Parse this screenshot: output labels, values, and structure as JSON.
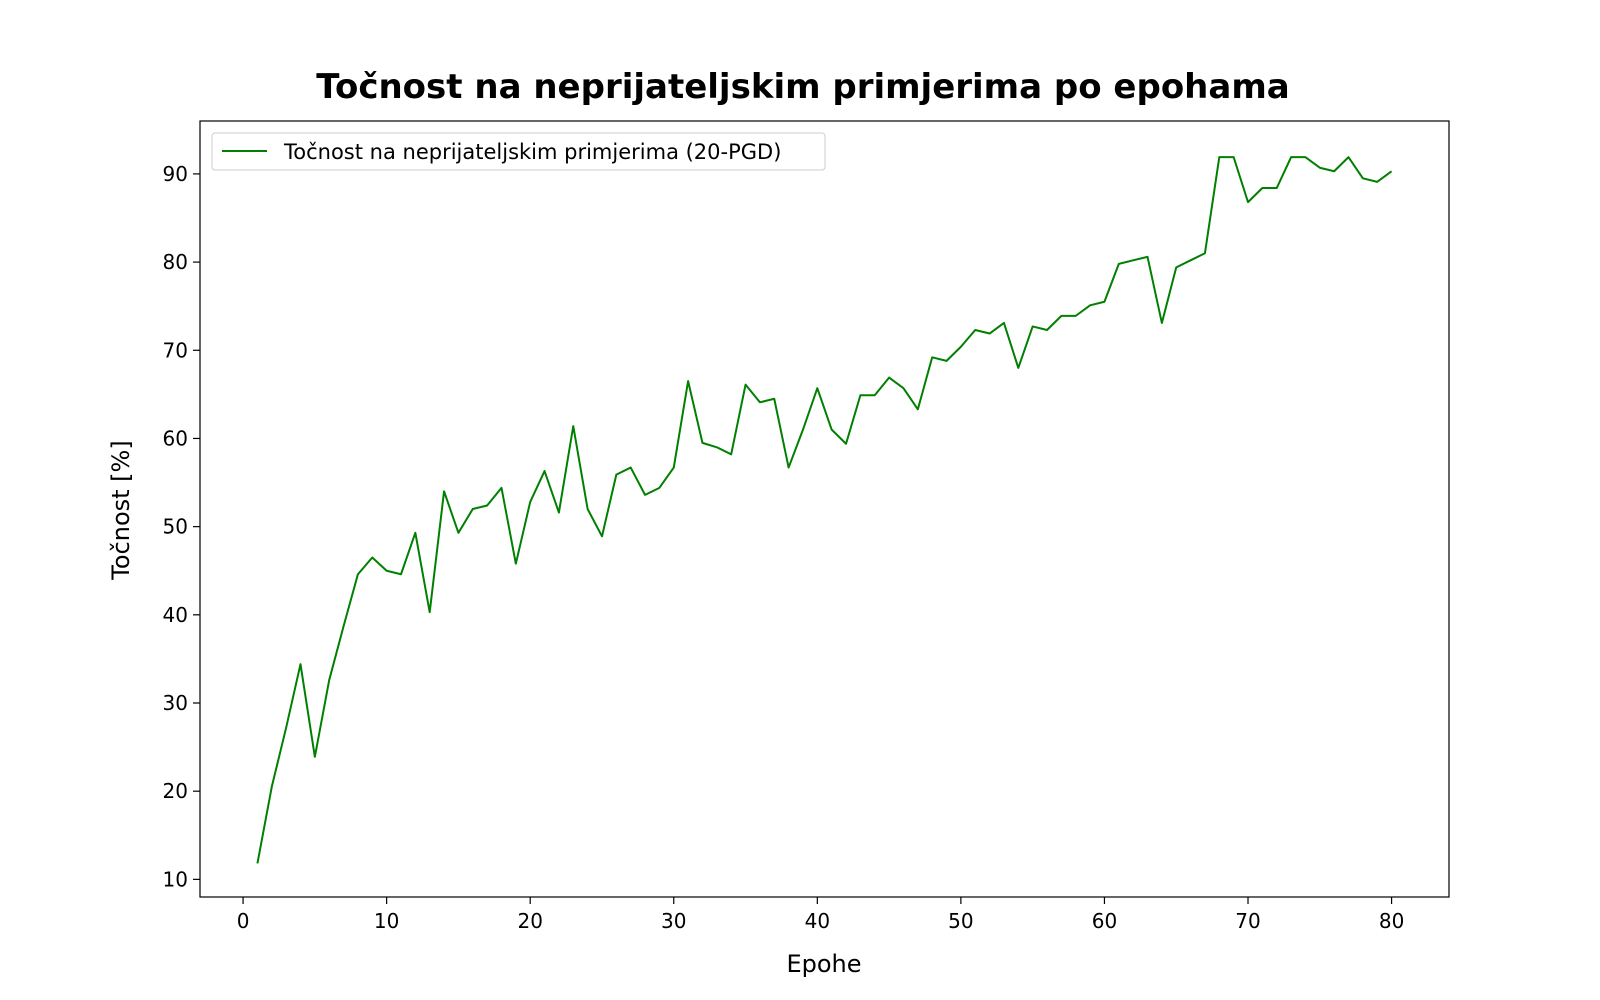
{
  "chart_data": {
    "type": "line",
    "title": "Točnost na neprijateljskim primjerima po epohama",
    "xlabel": "Epohe",
    "ylabel": "Točnost [%]",
    "xlim": [
      -3,
      84
    ],
    "ylim": [
      8,
      96
    ],
    "x_ticks": [
      0,
      10,
      20,
      30,
      40,
      50,
      60,
      70,
      80
    ],
    "y_ticks": [
      10,
      20,
      30,
      40,
      50,
      60,
      70,
      80,
      90
    ],
    "grid": false,
    "legend_position": "top-left",
    "series": [
      {
        "name": "Točnost na neprijateljskim primjerima (20-PGD)",
        "color": "#008000",
        "x": [
          1,
          2,
          3,
          4,
          5,
          6,
          7,
          8,
          9,
          10,
          11,
          12,
          13,
          14,
          15,
          16,
          17,
          18,
          19,
          20,
          21,
          22,
          23,
          24,
          25,
          26,
          27,
          28,
          29,
          30,
          31,
          32,
          33,
          34,
          35,
          36,
          37,
          38,
          39,
          40,
          41,
          42,
          43,
          44,
          45,
          46,
          47,
          48,
          49,
          50,
          51,
          52,
          53,
          54,
          55,
          56,
          57,
          58,
          59,
          60,
          61,
          62,
          63,
          64,
          65,
          66,
          67,
          68,
          69,
          70,
          71,
          72,
          73,
          74,
          75,
          76,
          77,
          78,
          79,
          80
        ],
        "values": [
          11.8,
          20.5,
          27.2,
          34.4,
          23.9,
          32.6,
          38.7,
          44.6,
          46.5,
          45.0,
          44.6,
          49.3,
          40.3,
          54.0,
          49.3,
          52.0,
          52.4,
          54.4,
          45.8,
          52.8,
          56.3,
          51.6,
          61.4,
          52.0,
          48.9,
          55.9,
          56.7,
          53.6,
          54.4,
          56.7,
          66.5,
          59.5,
          59.0,
          58.2,
          66.1,
          64.1,
          64.5,
          56.7,
          61.0,
          65.7,
          61.0,
          59.4,
          64.9,
          64.9,
          66.9,
          65.7,
          63.3,
          69.2,
          68.8,
          70.4,
          72.3,
          71.9,
          73.1,
          68.0,
          72.7,
          72.3,
          73.9,
          73.9,
          75.1,
          75.5,
          79.8,
          80.2,
          80.6,
          73.1,
          79.4,
          80.2,
          81.0,
          91.9,
          91.9,
          86.8,
          88.4,
          88.4,
          91.9,
          91.9,
          90.7,
          90.3,
          91.9,
          89.5,
          89.1,
          90.3
        ]
      }
    ]
  }
}
